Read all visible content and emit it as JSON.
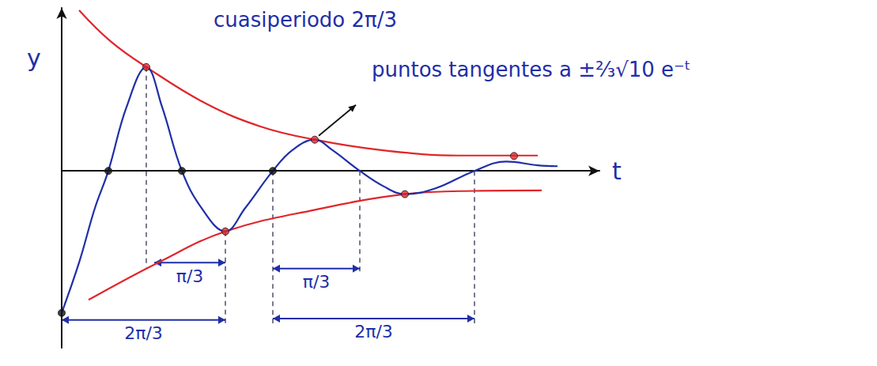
{
  "chart_data": {
    "type": "line",
    "x_label": "t",
    "y_label": "y",
    "xlim": [
      0,
      6.8
    ],
    "ylim": [
      -3.8,
      3.5
    ],
    "xticks": [],
    "yticks": [],
    "tick_labels": false,
    "grid": false,
    "title": "cuasiperiodo 2π/3",
    "annotations": [
      {
        "text": "puntos tangentes a ±⅔√10 e⁻ᵗ",
        "points_to": [
          3.2,
          0.67
        ]
      }
    ],
    "intervals": [
      {
        "label": "2π/3",
        "from": 0,
        "to": 2.07,
        "y": -3.2
      },
      {
        "label": "π/3",
        "from": 1.17,
        "to": 2.07,
        "y": -1.97
      },
      {
        "label": "π/3",
        "from": 2.67,
        "to": 3.77,
        "y": -2.1
      },
      {
        "label": "2π/3",
        "from": 2.67,
        "to": 5.22,
        "y": -3.17
      }
    ],
    "guides": [
      1.07,
      2.07,
      2.67,
      3.77,
      5.22
    ],
    "series": [
      {
        "type": "line",
        "color": "#e0262a",
        "line_style": "solid",
        "marker": "none",
        "x": [
          0.22,
          0.62,
          1.07,
          1.82,
          2.52,
          3.2,
          4.02,
          5.02,
          6.02
        ],
        "values": [
          3.45,
          2.78,
          2.23,
          1.45,
          0.95,
          0.67,
          0.45,
          0.33,
          0.33
        ]
      },
      {
        "type": "line",
        "color": "#e0262a",
        "line_style": "solid",
        "marker": "none",
        "x": [
          0.34,
          1.22,
          2.07,
          3.22,
          4.34,
          5.22,
          6.07
        ],
        "values": [
          -2.77,
          -1.97,
          -1.3,
          -0.83,
          -0.5,
          -0.43,
          -0.42
        ]
      },
      {
        "type": "line",
        "color": "#1f2fa8",
        "line_style": "solid",
        "marker": "none",
        "x": [
          0,
          0.22,
          0.42,
          0.59,
          0.82,
          1.07,
          1.27,
          1.52,
          1.77,
          2.07,
          2.32,
          2.67,
          2.92,
          3.2,
          3.42,
          3.77,
          4.07,
          4.34,
          4.72,
          5.22,
          5.62,
          6.02,
          6.27
        ],
        "values": [
          -3.05,
          -1.97,
          -0.8,
          0,
          1.37,
          2.23,
          1.37,
          0,
          -0.8,
          -1.3,
          -0.8,
          0,
          0.45,
          0.67,
          0.45,
          0,
          -0.33,
          -0.5,
          -0.38,
          0,
          0.2,
          0.12,
          0.1
        ]
      },
      {
        "type": "scatter",
        "color": "#e0262a",
        "marker": "circle",
        "x": [
          1.07,
          2.07,
          3.2,
          4.34,
          5.72
        ],
        "values": [
          2.23,
          -1.3,
          0.67,
          -0.5,
          0.32
        ]
      },
      {
        "type": "scatter",
        "color": "#111111",
        "marker": "circle",
        "x": [
          0,
          0.59,
          1.52,
          2.67
        ],
        "values": [
          -3.05,
          0,
          0,
          0
        ]
      }
    ]
  }
}
